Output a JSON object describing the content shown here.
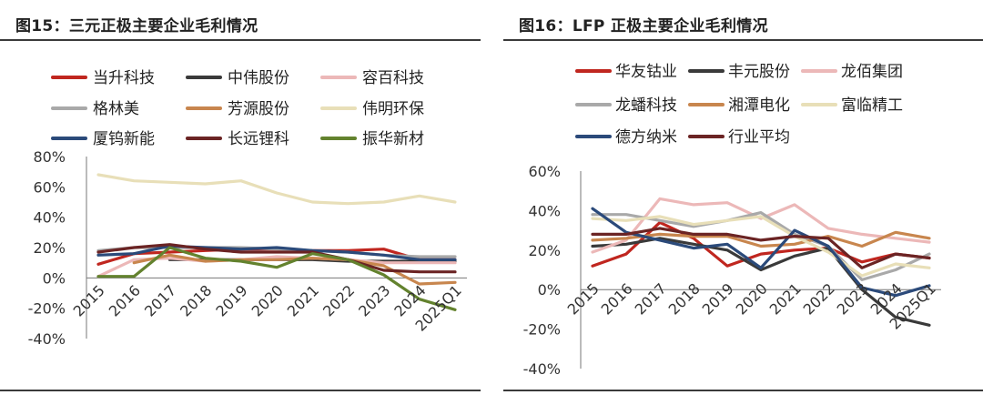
{
  "charts": [
    {
      "id": "left",
      "title": "图15：三元正极主要企业毛利情况",
      "chart_data": {
        "type": "line",
        "title": "",
        "xlabel": "",
        "ylabel": "",
        "categories": [
          "2015",
          "2016",
          "2017",
          "2018",
          "2019",
          "2020",
          "2021",
          "2022",
          "2023",
          "2024",
          "2025Q1"
        ],
        "y_ticks": [
          "80%",
          "60%",
          "40%",
          "20%",
          "0%",
          "-20%",
          "-40%"
        ],
        "ylim": [
          -40,
          80
        ],
        "y_unit": "%",
        "grid": false,
        "legend_position": "top",
        "series": [
          {
            "name": "当升科技",
            "color": "#c0261f",
            "values": [
              9,
              16,
              17,
              18,
              19,
              19,
              18,
              18,
              19,
              12,
              12
            ]
          },
          {
            "name": "中伟股份",
            "color": "#3a3a3a",
            "values": [
              null,
              null,
              12,
              12,
              12,
              12,
              12,
              11,
              11,
              11,
              11
            ]
          },
          {
            "name": "容百科技",
            "color": "#ecb8b8",
            "values": [
              1,
              12,
              13,
              11,
              12,
              14,
              13,
              12,
              10,
              10,
              10
            ]
          },
          {
            "name": "格林美",
            "color": "#a9a9a9",
            "values": [
              18,
              20,
              20,
              20,
              20,
              19,
              18,
              17,
              15,
              14,
              14
            ]
          },
          {
            "name": "芳源股份",
            "color": "#c8864e",
            "values": [
              null,
              10,
              15,
              11,
              12,
              12,
              13,
              12,
              8,
              -4,
              -3
            ]
          },
          {
            "name": "伟明环保",
            "color": "#e8dfb8",
            "values": [
              68,
              64,
              63,
              62,
              64,
              56,
              50,
              49,
              50,
              54,
              50
            ]
          },
          {
            "name": "厦钨新能",
            "color": "#2b4a7a",
            "values": [
              15,
              16,
              21,
              20,
              19,
              20,
              18,
              17,
              15,
              12,
              12
            ]
          },
          {
            "name": "长远锂科",
            "color": "#6b2424",
            "values": [
              17,
              20,
              22,
              19,
              17,
              17,
              17,
              12,
              5,
              4,
              4
            ]
          },
          {
            "name": "振华新材",
            "color": "#63822e",
            "values": [
              1,
              1,
              20,
              13,
              11,
              7,
              16,
              12,
              2,
              -14,
              -21
            ]
          }
        ]
      }
    },
    {
      "id": "right",
      "title": "图16：LFP 正极主要企业毛利情况",
      "chart_data": {
        "type": "line",
        "title": "",
        "xlabel": "",
        "ylabel": "",
        "categories": [
          "2015",
          "2016",
          "2017",
          "2018",
          "2019",
          "2020",
          "2021",
          "2022",
          "2023",
          "2024",
          "2025Q1"
        ],
        "y_ticks": [
          "60%",
          "40%",
          "20%",
          "0%",
          "-20%",
          "-40%"
        ],
        "ylim": [
          -40,
          60
        ],
        "y_unit": "%",
        "grid": false,
        "legend_position": "top",
        "series": [
          {
            "name": "华友钴业",
            "color": "#c0261f",
            "values": [
              12,
              18,
              34,
              26,
              12,
              18,
              20,
              21,
              14,
              18,
              16
            ]
          },
          {
            "name": "丰元股份",
            "color": "#3a3a3a",
            "values": [
              22,
              23,
              26,
              23,
              20,
              10,
              17,
              21,
              0,
              -14,
              -18
            ]
          },
          {
            "name": "龙佰集团",
            "color": "#ecb8b8",
            "values": [
              19,
              25,
              46,
              43,
              44,
              36,
              43,
              31,
              28,
              26,
              24
            ]
          },
          {
            "name": "龙蟠科技",
            "color": "#a9a9a9",
            "values": [
              38,
              38,
              35,
              32,
              35,
              39,
              28,
              22,
              5,
              10,
              18
            ]
          },
          {
            "name": "湘潭电化",
            "color": "#c8864e",
            "values": [
              25,
              26,
              28,
              27,
              27,
              22,
              23,
              27,
              22,
              29,
              26
            ]
          },
          {
            "name": "富临精工",
            "color": "#e8dfb8",
            "values": [
              36,
              35,
              37,
              33,
              35,
              37,
              27,
              19,
              7,
              13,
              11
            ]
          },
          {
            "name": "德方纳米",
            "color": "#2b4a7a",
            "values": [
              41,
              29,
              25,
              21,
              23,
              11,
              30,
              22,
              1,
              -3,
              2
            ]
          },
          {
            "name": "行业平均",
            "color": "#6b2424",
            "values": [
              28,
              28,
              31,
              28,
              28,
              25,
              27,
              26,
              11,
              18,
              16
            ]
          }
        ]
      }
    }
  ]
}
